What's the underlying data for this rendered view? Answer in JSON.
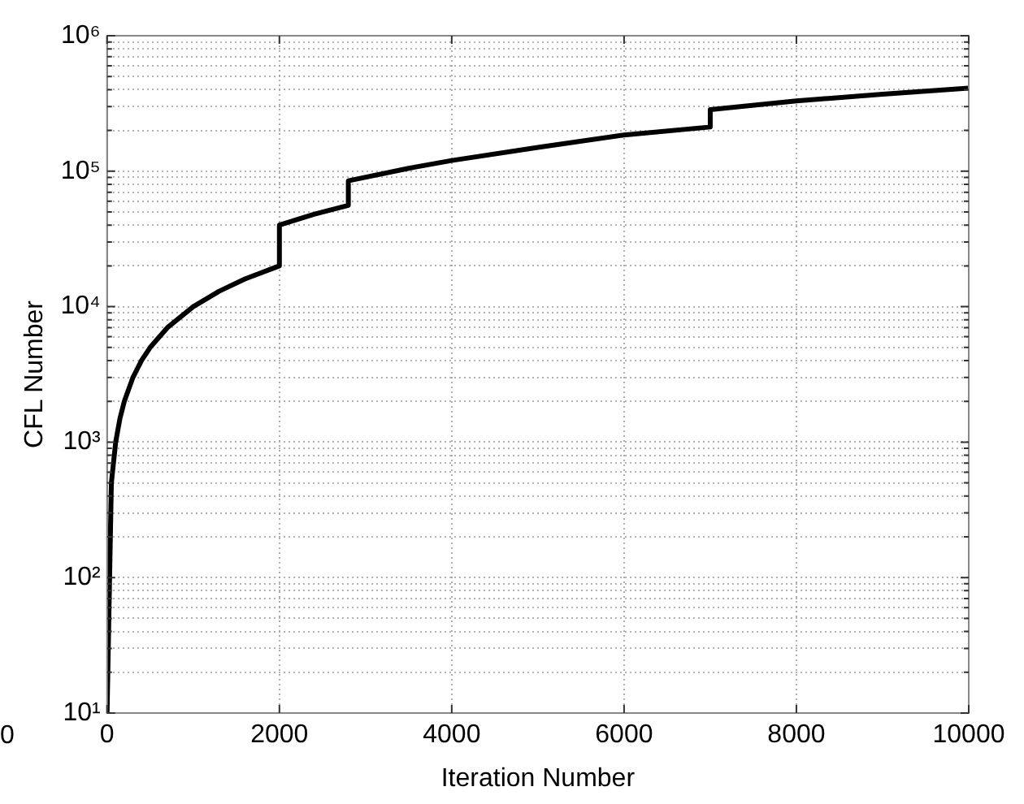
{
  "chart_data": {
    "type": "line",
    "xlabel": "Iteration Number",
    "ylabel": "CFL Number",
    "annotations": [
      "0"
    ],
    "x": [
      0,
      50,
      100,
      150,
      200,
      300,
      400,
      500,
      700,
      1000,
      1300,
      1600,
      2000,
      2000,
      2400,
      2800,
      2800,
      3500,
      4000,
      5000,
      6000,
      7000,
      7000,
      8000,
      9000,
      10000
    ],
    "series": [
      {
        "color": "#000000",
        "values": [
          10,
          500,
          1000,
          1500,
          2000,
          3000,
          4000,
          5000,
          7000,
          10000,
          13000,
          16000,
          20000,
          40000,
          48000,
          56000,
          85000,
          105000,
          120000,
          150000,
          185000,
          212000,
          285000,
          330000,
          370000,
          410000
        ]
      }
    ],
    "xlim": [
      0,
      10000
    ],
    "xticks": [
      0,
      2000,
      4000,
      6000,
      8000,
      10000
    ],
    "ylim": [
      10,
      1000000
    ],
    "yticks": [
      {
        "value": 10,
        "label": "10¹"
      },
      {
        "value": 20,
        "label": null
      },
      {
        "value": 30,
        "label": null
      },
      {
        "value": 40,
        "label": null
      },
      {
        "value": 50,
        "label": null
      },
      {
        "value": 60,
        "label": null
      },
      {
        "value": 70,
        "label": null
      },
      {
        "value": 80,
        "label": null
      },
      {
        "value": 90,
        "label": null
      },
      {
        "value": 100,
        "label": "10²"
      },
      {
        "value": 200,
        "label": null
      },
      {
        "value": 300,
        "label": null
      },
      {
        "value": 400,
        "label": null
      },
      {
        "value": 500,
        "label": null
      },
      {
        "value": 600,
        "label": null
      },
      {
        "value": 700,
        "label": null
      },
      {
        "value": 800,
        "label": null
      },
      {
        "value": 900,
        "label": null
      },
      {
        "value": 1000,
        "label": "10³"
      },
      {
        "value": 2000,
        "label": null
      },
      {
        "value": 3000,
        "label": null
      },
      {
        "value": 4000,
        "label": null
      },
      {
        "value": 5000,
        "label": null
      },
      {
        "value": 6000,
        "label": null
      },
      {
        "value": 7000,
        "label": null
      },
      {
        "value": 8000,
        "label": null
      },
      {
        "value": 9000,
        "label": null
      },
      {
        "value": 10000,
        "label": "10⁴"
      },
      {
        "value": 20000,
        "label": null
      },
      {
        "value": 30000,
        "label": null
      },
      {
        "value": 40000,
        "label": null
      },
      {
        "value": 50000,
        "label": null
      },
      {
        "value": 60000,
        "label": null
      },
      {
        "value": 70000,
        "label": null
      },
      {
        "value": 80000,
        "label": null
      },
      {
        "value": 90000,
        "label": null
      },
      {
        "value": 100000,
        "label": "10⁵"
      },
      {
        "value": 200000,
        "label": null
      },
      {
        "value": 300000,
        "label": null
      },
      {
        "value": 400000,
        "label": null
      },
      {
        "value": 500000,
        "label": null
      },
      {
        "value": 600000,
        "label": null
      },
      {
        "value": 700000,
        "label": null
      },
      {
        "value": 800000,
        "label": null
      },
      {
        "value": 900000,
        "label": null
      },
      {
        "value": 1000000,
        "label": "10⁶"
      }
    ],
    "log": "y",
    "grid": true,
    "legend": false,
    "marker": "none",
    "line_style": "solid"
  }
}
